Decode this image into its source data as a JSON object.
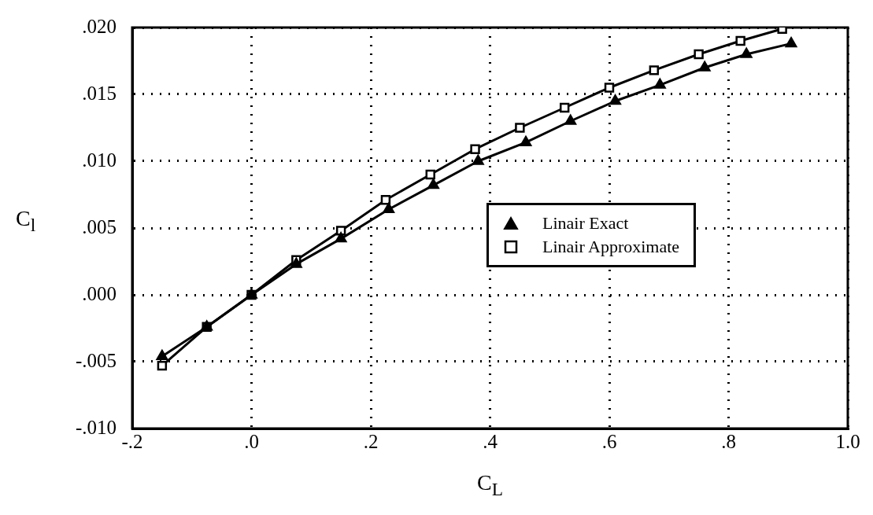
{
  "chart_data": {
    "type": "line",
    "xlabel": "C$_{L}$",
    "ylabel": "C$_{l}$",
    "xlim": [
      -0.2,
      1.0
    ],
    "ylim": [
      -0.01,
      0.02
    ],
    "xticks": [
      {
        "value": -0.2,
        "label": "-.2"
      },
      {
        "value": 0,
        "label": ".0"
      },
      {
        "value": 0.2,
        "label": ".2"
      },
      {
        "value": 0.4,
        "label": ".4"
      },
      {
        "value": 0.6,
        "label": ".6"
      },
      {
        "value": 0.8,
        "label": ".8"
      },
      {
        "value": 1.0,
        "label": "1.0"
      }
    ],
    "yticks": [
      {
        "value": -0.01,
        "label": "-.010"
      },
      {
        "value": -0.005,
        "label": "-.005"
      },
      {
        "value": 0,
        "label": ".000"
      },
      {
        "value": 0.005,
        "label": ".005"
      },
      {
        "value": 0.01,
        "label": ".010"
      },
      {
        "value": 0.015,
        "label": ".015"
      },
      {
        "value": 0.02,
        "label": ".020"
      }
    ],
    "grid": true,
    "legend": "center right",
    "line_style": "solid",
    "series": [
      {
        "name": "Linair Exact",
        "color": "#000000",
        "marker": "triangle",
        "x": [
          -0.15,
          -0.075,
          0,
          0.075,
          0.15,
          0.23,
          0.305,
          0.38,
          0.46,
          0.535,
          0.61,
          0.685,
          0.76,
          0.83,
          0.905
        ],
        "values": [
          -0.0046,
          -0.0024,
          0,
          0.0023,
          0.0042,
          0.0064,
          0.0082,
          0.01,
          0.0114,
          0.013,
          0.0145,
          0.0157,
          0.017,
          0.018,
          0.0188
        ]
      },
      {
        "name": "Linair Approximate",
        "color": "#000000",
        "marker": "square",
        "x": [
          -0.15,
          -0.075,
          0,
          0.075,
          0.15,
          0.225,
          0.3,
          0.375,
          0.45,
          0.525,
          0.6,
          0.675,
          0.75,
          0.82,
          0.89
        ],
        "values": [
          -0.0053,
          -0.0024,
          0,
          0.0026,
          0.0048,
          0.0071,
          0.009,
          0.0109,
          0.0125,
          0.014,
          0.0155,
          0.0168,
          0.018,
          0.019,
          0.0199
        ]
      }
    ]
  }
}
